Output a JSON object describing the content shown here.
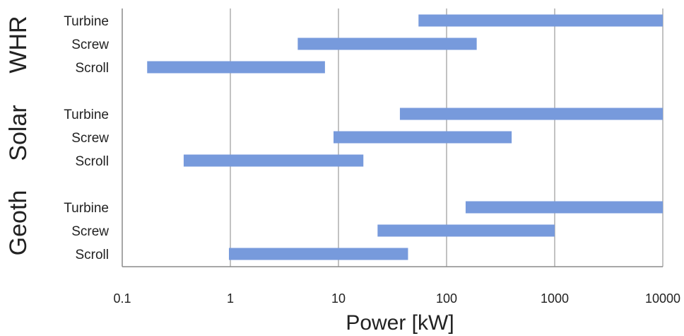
{
  "chart_data": {
    "type": "bar",
    "orientation": "horizontal",
    "x_scale": "log",
    "xlim": [
      0.1,
      10000
    ],
    "xlabel": "Power [kW]",
    "x_ticks": [
      "0.1",
      "1",
      "10",
      "100",
      "1000",
      "10000"
    ],
    "grid": "vertical",
    "bar_color": "#779ADC",
    "groups": [
      {
        "name": "WHR",
        "bars": [
          {
            "label": "Turbine",
            "start": 55,
            "end": 10000
          },
          {
            "label": "Screw",
            "start": 4.2,
            "end": 190
          },
          {
            "label": "Scroll",
            "start": 0.17,
            "end": 7.5
          }
        ]
      },
      {
        "name": "Solar",
        "bars": [
          {
            "label": "Turbine",
            "start": 37,
            "end": 10000
          },
          {
            "label": "Screw",
            "start": 9,
            "end": 400
          },
          {
            "label": "Scroll",
            "start": 0.37,
            "end": 17
          }
        ]
      },
      {
        "name": "Geoth",
        "bars": [
          {
            "label": "Turbine",
            "start": 150,
            "end": 10000
          },
          {
            "label": "Screw",
            "start": 23,
            "end": 1000
          },
          {
            "label": "Scroll",
            "start": 0.97,
            "end": 44
          }
        ]
      }
    ]
  }
}
